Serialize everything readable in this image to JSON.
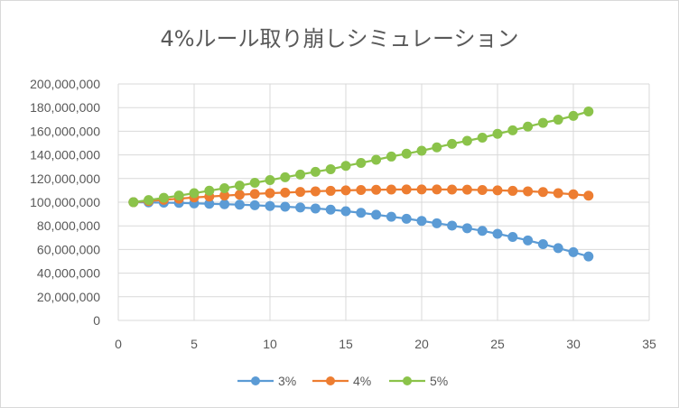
{
  "chart_data": {
    "type": "line",
    "title": "4%ルール取り崩しシミュレーション",
    "xlabel": "",
    "ylabel": "",
    "xlim": [
      0,
      35
    ],
    "ylim": [
      0,
      200000000
    ],
    "x_ticks": [
      "0",
      "5",
      "10",
      "15",
      "20",
      "25",
      "30",
      "35"
    ],
    "y_ticks": [
      "0",
      "20,000,000",
      "40,000,000",
      "60,000,000",
      "80,000,000",
      "100,000,000",
      "120,000,000",
      "140,000,000",
      "160,000,000",
      "180,000,000",
      "200,000,000"
    ],
    "grid": true,
    "legend_position": "bottom",
    "x": [
      1,
      2,
      3,
      4,
      5,
      6,
      7,
      8,
      9,
      10,
      11,
      12,
      13,
      14,
      15,
      16,
      17,
      18,
      19,
      20,
      21,
      22,
      23,
      24,
      25,
      26,
      27,
      28,
      29,
      30,
      31
    ],
    "series": [
      {
        "name": "3%",
        "color": "#5b9bd5",
        "values": [
          100000000,
          99800000,
          99600000,
          99400000,
          99000000,
          98700000,
          98300000,
          97900000,
          97400000,
          96800000,
          96200000,
          95500000,
          94700000,
          93700000,
          92400000,
          91000000,
          89400000,
          87700000,
          86000000,
          84200000,
          82200000,
          80200000,
          78000000,
          75800000,
          73300000,
          70600000,
          67700000,
          64500000,
          61200000,
          57700000,
          54100000
        ]
      },
      {
        "name": "4%",
        "color": "#ed7d31",
        "values": [
          100000000,
          101000000,
          102000000,
          103000000,
          104000000,
          104800000,
          105600000,
          106300000,
          107000000,
          107600000,
          108100000,
          108700000,
          109200000,
          109600000,
          110000000,
          110300000,
          110500000,
          110700000,
          110800000,
          110800000,
          110800000,
          110700000,
          110600000,
          110300000,
          110000000,
          109600000,
          109200000,
          108600000,
          107600000,
          106700000,
          105500000
        ]
      },
      {
        "name": "5%",
        "color": "#8bc34a",
        "values": [
          100000000,
          101800000,
          103700000,
          105600000,
          107600000,
          109700000,
          111800000,
          114000000,
          116400000,
          118700000,
          121100000,
          123400000,
          125700000,
          127900000,
          130700000,
          133200000,
          135900000,
          138600000,
          141000000,
          143500000,
          146400000,
          149300000,
          151900000,
          154600000,
          157800000,
          160800000,
          163900000,
          167100000,
          169800000,
          173000000,
          176700000
        ]
      }
    ]
  }
}
